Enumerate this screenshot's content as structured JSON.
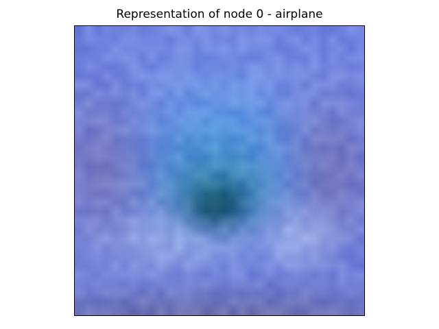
{
  "title": "Representation of node 0 - airplane",
  "image": {
    "description_icon": "pixelated-image",
    "grid_size": 32,
    "palette": {
      "sky": "#6f80de",
      "sky_light": "#8fa8ee",
      "center_blue": "#4a98e2",
      "teal": "#3aa0c8",
      "dark_core": "#0a3a52",
      "purple_edge": "#7a6aa8",
      "pale": "#b8c8f2",
      "bottom_dark": "#6a6490"
    }
  }
}
